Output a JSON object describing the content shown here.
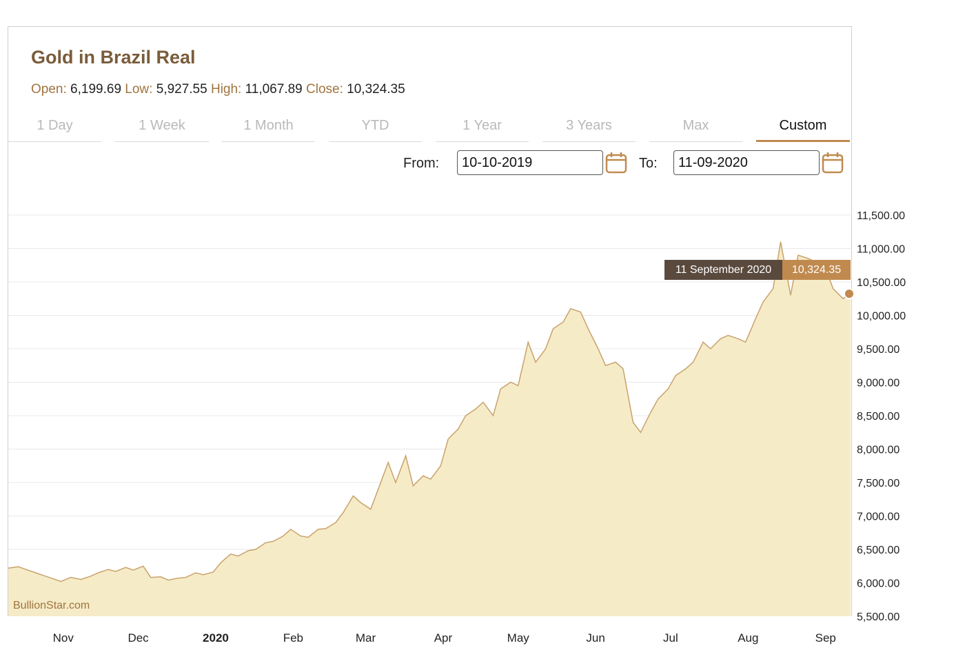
{
  "title": "Gold in Brazil Real",
  "ohlc": {
    "open_label": "Open:",
    "open": "6,199.69",
    "low_label": "Low:",
    "low": "5,927.55",
    "high_label": "High:",
    "high": "11,067.89",
    "close_label": "Close:",
    "close": "10,324.35"
  },
  "tabs": [
    {
      "label": "1 Day",
      "active": false
    },
    {
      "label": "1 Week",
      "active": false
    },
    {
      "label": "1 Month",
      "active": false
    },
    {
      "label": "YTD",
      "active": false
    },
    {
      "label": "1 Year",
      "active": false
    },
    {
      "label": "3 Years",
      "active": false
    },
    {
      "label": "Max",
      "active": false
    },
    {
      "label": "Custom",
      "active": true
    }
  ],
  "range": {
    "from_label": "From:",
    "from_value": "10-10-2019",
    "to_label": "To:",
    "to_value": "11-09-2020"
  },
  "tooltip": {
    "date": "11 September 2020",
    "value": "10,324.35"
  },
  "watermark": "BullionStar.com",
  "colors": {
    "accent": "#c08a4f",
    "title": "#7a5c3a",
    "area_fill": "#f5ebc7",
    "line": "#c9a26b",
    "tooltip_dark": "#5a4a3e"
  },
  "icons": {
    "calendar": "calendar-icon"
  },
  "chart_data": {
    "type": "area",
    "ylim": [
      5500,
      11500
    ],
    "yticks": [
      "11,500.00",
      "11,000.00",
      "10,500.00",
      "10,000.00",
      "9,500.00",
      "9,000.00",
      "8,500.00",
      "8,000.00",
      "7,500.00",
      "7,000.00",
      "6,500.00",
      "6,000.00",
      "5,500.00"
    ],
    "ytick_values": [
      11500,
      11000,
      10500,
      10000,
      9500,
      9000,
      8500,
      8000,
      7500,
      7000,
      6500,
      6000,
      5500
    ],
    "xlim": [
      "2019-10-10",
      "2020-09-11"
    ],
    "xticks": [
      {
        "label": "Nov",
        "date": "2019-11-01",
        "bold": false
      },
      {
        "label": "Dec",
        "date": "2019-12-01",
        "bold": false
      },
      {
        "label": "2020",
        "date": "2020-01-01",
        "bold": true
      },
      {
        "label": "Feb",
        "date": "2020-02-01",
        "bold": false
      },
      {
        "label": "Mar",
        "date": "2020-03-01",
        "bold": false
      },
      {
        "label": "Apr",
        "date": "2020-04-01",
        "bold": false
      },
      {
        "label": "May",
        "date": "2020-05-01",
        "bold": false
      },
      {
        "label": "Jun",
        "date": "2020-06-01",
        "bold": false
      },
      {
        "label": "Jul",
        "date": "2020-07-01",
        "bold": false
      },
      {
        "label": "Aug",
        "date": "2020-08-01",
        "bold": false
      },
      {
        "label": "Sep",
        "date": "2020-09-01",
        "bold": false
      }
    ],
    "series": [
      {
        "x": [
          "2019-10-10",
          "2019-10-14",
          "2019-10-17",
          "2019-10-21",
          "2019-10-24",
          "2019-10-28",
          "2019-10-31",
          "2019-11-04",
          "2019-11-08",
          "2019-11-12",
          "2019-11-15",
          "2019-11-19",
          "2019-11-22",
          "2019-11-26",
          "2019-11-29",
          "2019-12-03",
          "2019-12-06",
          "2019-12-10",
          "2019-12-13",
          "2019-12-17",
          "2019-12-20",
          "2019-12-24",
          "2019-12-27",
          "2019-12-31",
          "2020-01-03",
          "2020-01-07",
          "2020-01-10",
          "2020-01-14",
          "2020-01-17",
          "2020-01-21",
          "2020-01-24",
          "2020-01-28",
          "2020-01-31",
          "2020-02-04",
          "2020-02-07",
          "2020-02-11",
          "2020-02-14",
          "2020-02-18",
          "2020-02-21",
          "2020-02-25",
          "2020-02-28",
          "2020-03-03",
          "2020-03-06",
          "2020-03-10",
          "2020-03-13",
          "2020-03-17",
          "2020-03-20",
          "2020-03-24",
          "2020-03-27",
          "2020-03-31",
          "2020-04-03",
          "2020-04-07",
          "2020-04-10",
          "2020-04-14",
          "2020-04-17",
          "2020-04-21",
          "2020-04-24",
          "2020-04-28",
          "2020-05-01",
          "2020-05-05",
          "2020-05-08",
          "2020-05-12",
          "2020-05-15",
          "2020-05-19",
          "2020-05-22",
          "2020-05-26",
          "2020-05-29",
          "2020-06-02",
          "2020-06-05",
          "2020-06-09",
          "2020-06-12",
          "2020-06-16",
          "2020-06-19",
          "2020-06-23",
          "2020-06-26",
          "2020-06-30",
          "2020-07-03",
          "2020-07-07",
          "2020-07-10",
          "2020-07-14",
          "2020-07-17",
          "2020-07-21",
          "2020-07-24",
          "2020-07-28",
          "2020-07-31",
          "2020-08-04",
          "2020-08-07",
          "2020-08-11",
          "2020-08-14",
          "2020-08-18",
          "2020-08-21",
          "2020-08-25",
          "2020-08-28",
          "2020-09-01",
          "2020-09-04",
          "2020-09-08",
          "2020-09-11"
        ],
        "y": [
          6220,
          6240,
          6200,
          6150,
          6110,
          6060,
          6020,
          6080,
          6050,
          6100,
          6150,
          6200,
          6170,
          6230,
          6190,
          6250,
          6080,
          6090,
          6040,
          6070,
          6080,
          6150,
          6120,
          6160,
          6300,
          6430,
          6400,
          6480,
          6500,
          6600,
          6620,
          6700,
          6800,
          6700,
          6680,
          6800,
          6810,
          6900,
          7050,
          7300,
          7200,
          7100,
          7400,
          7800,
          7500,
          7900,
          7450,
          7600,
          7550,
          7750,
          8150,
          8300,
          8500,
          8600,
          8700,
          8500,
          8900,
          9000,
          8950,
          9600,
          9300,
          9500,
          9800,
          9900,
          10100,
          10050,
          9800,
          9500,
          9250,
          9300,
          9200,
          8400,
          8250,
          8550,
          8750,
          8900,
          9100,
          9200,
          9300,
          9600,
          9500,
          9650,
          9700,
          9650,
          9600,
          9950,
          10200,
          10400,
          11100,
          10300,
          10900,
          10850,
          10800,
          10700,
          10400,
          10250,
          10324
        ]
      }
    ]
  }
}
